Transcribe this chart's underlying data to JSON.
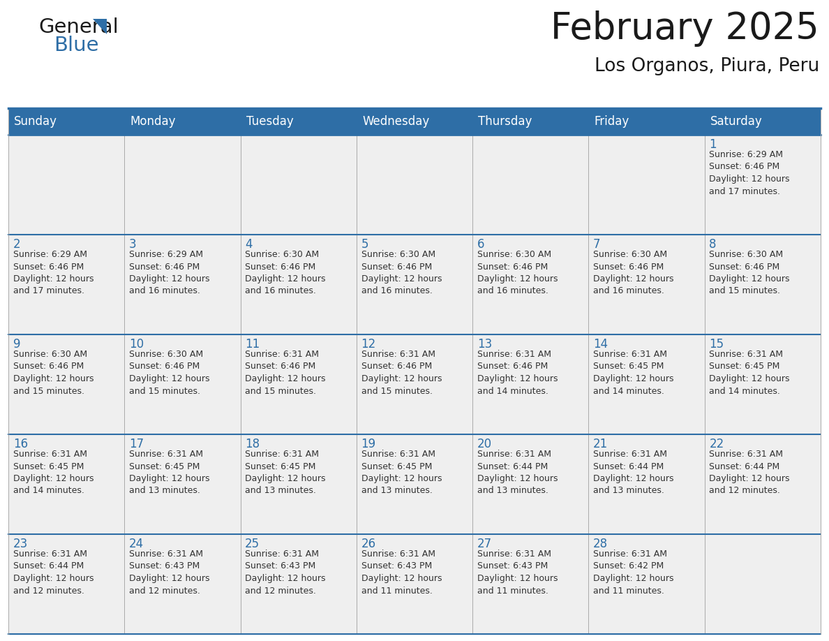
{
  "title": "February 2025",
  "subtitle": "Los Organos, Piura, Peru",
  "header_bg": "#2E6EA6",
  "header_text_color": "#FFFFFF",
  "cell_bg": "#EFEFEF",
  "day_number_color": "#2E6EA6",
  "info_text_color": "#333333",
  "border_color": "#2E6EA6",
  "vert_border_color": "#AAAAAA",
  "days_of_week": [
    "Sunday",
    "Monday",
    "Tuesday",
    "Wednesday",
    "Thursday",
    "Friday",
    "Saturday"
  ],
  "weeks": [
    [
      {
        "day": null,
        "info": ""
      },
      {
        "day": null,
        "info": ""
      },
      {
        "day": null,
        "info": ""
      },
      {
        "day": null,
        "info": ""
      },
      {
        "day": null,
        "info": ""
      },
      {
        "day": null,
        "info": ""
      },
      {
        "day": 1,
        "info": "Sunrise: 6:29 AM\nSunset: 6:46 PM\nDaylight: 12 hours\nand 17 minutes."
      }
    ],
    [
      {
        "day": 2,
        "info": "Sunrise: 6:29 AM\nSunset: 6:46 PM\nDaylight: 12 hours\nand 17 minutes."
      },
      {
        "day": 3,
        "info": "Sunrise: 6:29 AM\nSunset: 6:46 PM\nDaylight: 12 hours\nand 16 minutes."
      },
      {
        "day": 4,
        "info": "Sunrise: 6:30 AM\nSunset: 6:46 PM\nDaylight: 12 hours\nand 16 minutes."
      },
      {
        "day": 5,
        "info": "Sunrise: 6:30 AM\nSunset: 6:46 PM\nDaylight: 12 hours\nand 16 minutes."
      },
      {
        "day": 6,
        "info": "Sunrise: 6:30 AM\nSunset: 6:46 PM\nDaylight: 12 hours\nand 16 minutes."
      },
      {
        "day": 7,
        "info": "Sunrise: 6:30 AM\nSunset: 6:46 PM\nDaylight: 12 hours\nand 16 minutes."
      },
      {
        "day": 8,
        "info": "Sunrise: 6:30 AM\nSunset: 6:46 PM\nDaylight: 12 hours\nand 15 minutes."
      }
    ],
    [
      {
        "day": 9,
        "info": "Sunrise: 6:30 AM\nSunset: 6:46 PM\nDaylight: 12 hours\nand 15 minutes."
      },
      {
        "day": 10,
        "info": "Sunrise: 6:30 AM\nSunset: 6:46 PM\nDaylight: 12 hours\nand 15 minutes."
      },
      {
        "day": 11,
        "info": "Sunrise: 6:31 AM\nSunset: 6:46 PM\nDaylight: 12 hours\nand 15 minutes."
      },
      {
        "day": 12,
        "info": "Sunrise: 6:31 AM\nSunset: 6:46 PM\nDaylight: 12 hours\nand 15 minutes."
      },
      {
        "day": 13,
        "info": "Sunrise: 6:31 AM\nSunset: 6:46 PM\nDaylight: 12 hours\nand 14 minutes."
      },
      {
        "day": 14,
        "info": "Sunrise: 6:31 AM\nSunset: 6:45 PM\nDaylight: 12 hours\nand 14 minutes."
      },
      {
        "day": 15,
        "info": "Sunrise: 6:31 AM\nSunset: 6:45 PM\nDaylight: 12 hours\nand 14 minutes."
      }
    ],
    [
      {
        "day": 16,
        "info": "Sunrise: 6:31 AM\nSunset: 6:45 PM\nDaylight: 12 hours\nand 14 minutes."
      },
      {
        "day": 17,
        "info": "Sunrise: 6:31 AM\nSunset: 6:45 PM\nDaylight: 12 hours\nand 13 minutes."
      },
      {
        "day": 18,
        "info": "Sunrise: 6:31 AM\nSunset: 6:45 PM\nDaylight: 12 hours\nand 13 minutes."
      },
      {
        "day": 19,
        "info": "Sunrise: 6:31 AM\nSunset: 6:45 PM\nDaylight: 12 hours\nand 13 minutes."
      },
      {
        "day": 20,
        "info": "Sunrise: 6:31 AM\nSunset: 6:44 PM\nDaylight: 12 hours\nand 13 minutes."
      },
      {
        "day": 21,
        "info": "Sunrise: 6:31 AM\nSunset: 6:44 PM\nDaylight: 12 hours\nand 13 minutes."
      },
      {
        "day": 22,
        "info": "Sunrise: 6:31 AM\nSunset: 6:44 PM\nDaylight: 12 hours\nand 12 minutes."
      }
    ],
    [
      {
        "day": 23,
        "info": "Sunrise: 6:31 AM\nSunset: 6:44 PM\nDaylight: 12 hours\nand 12 minutes."
      },
      {
        "day": 24,
        "info": "Sunrise: 6:31 AM\nSunset: 6:43 PM\nDaylight: 12 hours\nand 12 minutes."
      },
      {
        "day": 25,
        "info": "Sunrise: 6:31 AM\nSunset: 6:43 PM\nDaylight: 12 hours\nand 12 minutes."
      },
      {
        "day": 26,
        "info": "Sunrise: 6:31 AM\nSunset: 6:43 PM\nDaylight: 12 hours\nand 11 minutes."
      },
      {
        "day": 27,
        "info": "Sunrise: 6:31 AM\nSunset: 6:43 PM\nDaylight: 12 hours\nand 11 minutes."
      },
      {
        "day": 28,
        "info": "Sunrise: 6:31 AM\nSunset: 6:42 PM\nDaylight: 12 hours\nand 11 minutes."
      },
      {
        "day": null,
        "info": ""
      }
    ]
  ],
  "logo_text1": "General",
  "logo_text2": "Blue",
  "logo_text1_color": "#1a1a1a",
  "logo_text2_color": "#2E6EA6",
  "logo_triangle_color": "#2E6EA6",
  "title_fontsize": 38,
  "subtitle_fontsize": 19,
  "header_fontsize": 12,
  "day_num_fontsize": 12,
  "info_fontsize": 9
}
